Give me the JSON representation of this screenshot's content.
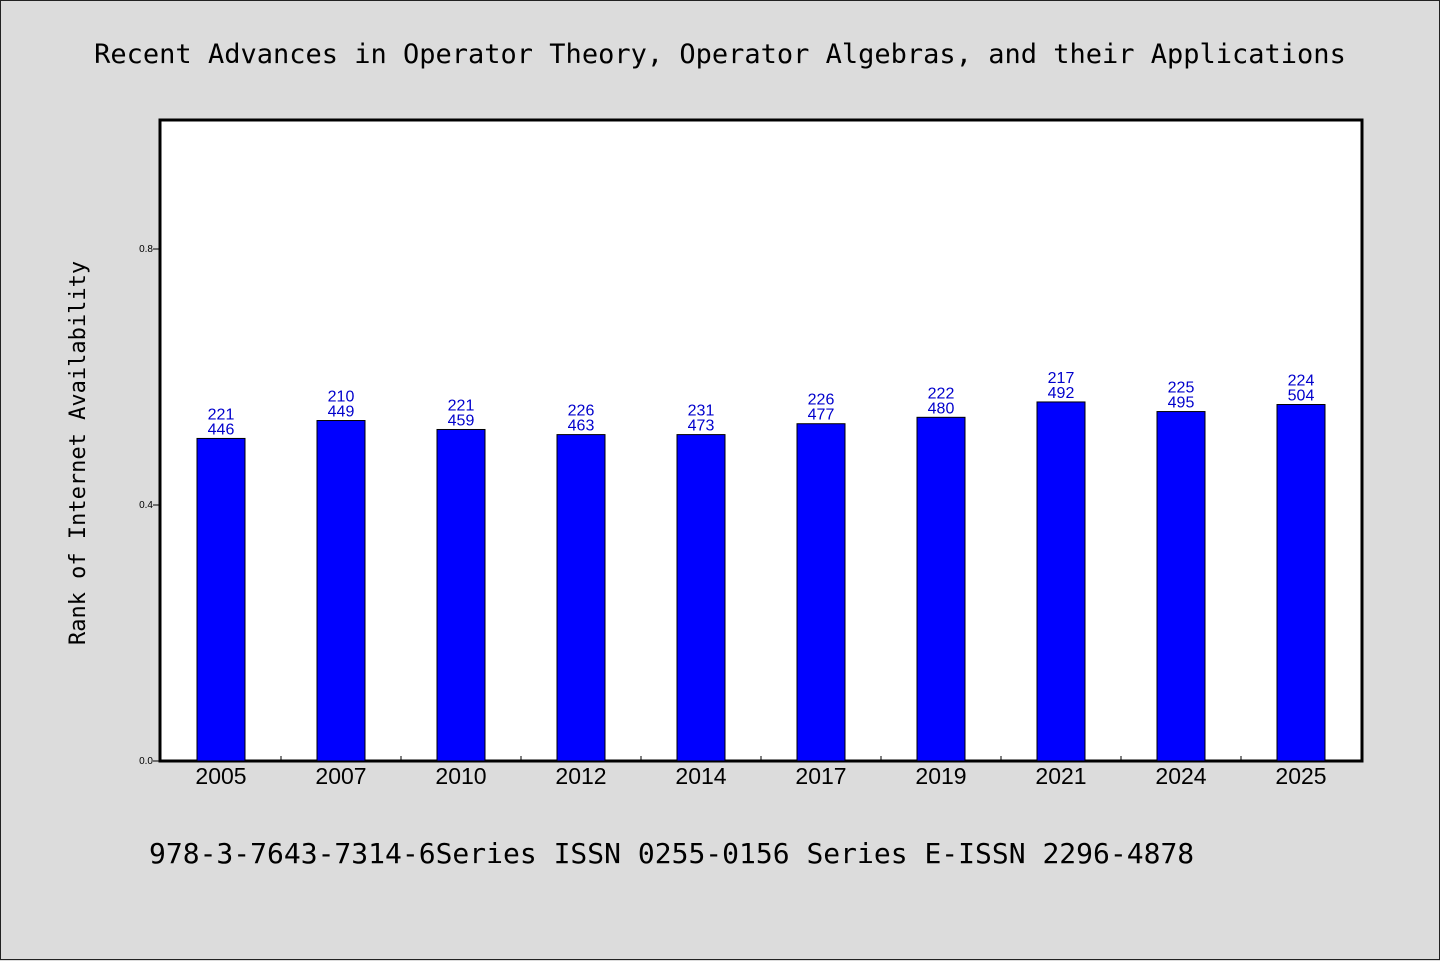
{
  "chart_data": {
    "type": "bar",
    "title": "Recent Advances in Operator Theory, Operator Algebras, and their Applications",
    "ylabel": "Rank of Internet Availability",
    "xlabel": "",
    "footer": "978-3-7643-7314-6Series ISSN 0255-0156 Series E-ISSN 2296-4878",
    "ylim": [
      0,
      1.0
    ],
    "yticks": [
      0.0,
      0.4,
      0.8
    ],
    "ytick_labels": [
      "0.0",
      "0.4",
      "0.8"
    ],
    "categories": [
      "2005",
      "2007",
      "2010",
      "2012",
      "2014",
      "2017",
      "2019",
      "2021",
      "2024",
      "2025"
    ],
    "values": [
      0.504,
      0.532,
      0.518,
      0.51,
      0.51,
      0.527,
      0.537,
      0.561,
      0.546,
      0.557
    ],
    "labels_top": [
      "221",
      "210",
      "221",
      "226",
      "231",
      "226",
      "222",
      "217",
      "225",
      "224"
    ],
    "labels_bottom": [
      "446",
      "449",
      "459",
      "463",
      "473",
      "477",
      "480",
      "492",
      "495",
      "504"
    ],
    "bar_color": "#0000ff",
    "label_color": "#0000cc",
    "background_color": "#dcdcdc",
    "plot_background_color": "#ffffff",
    "grid": false,
    "legend": "none"
  }
}
